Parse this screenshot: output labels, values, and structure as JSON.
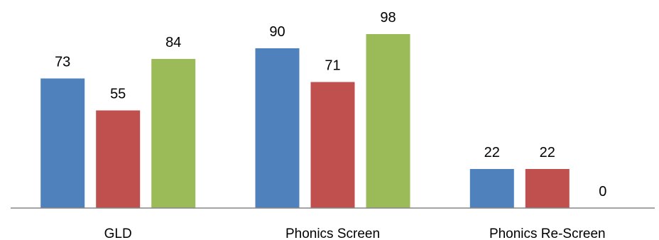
{
  "chart_data": {
    "type": "bar",
    "title": "",
    "xlabel": "",
    "ylabel": "",
    "categories": [
      "GLD",
      "Phonics Screen",
      "Phonics Re-Screen"
    ],
    "series": [
      {
        "values": [
          73,
          90,
          22
        ],
        "color": "#4F81BD"
      },
      {
        "values": [
          55,
          71,
          22
        ],
        "color": "#C0504D"
      },
      {
        "values": [
          84,
          98,
          0
        ],
        "color": "#9BBB59"
      }
    ],
    "ylim": [
      0,
      100
    ],
    "grid": false,
    "legend": "none",
    "data_labels": true,
    "axis_color": "#868686"
  }
}
